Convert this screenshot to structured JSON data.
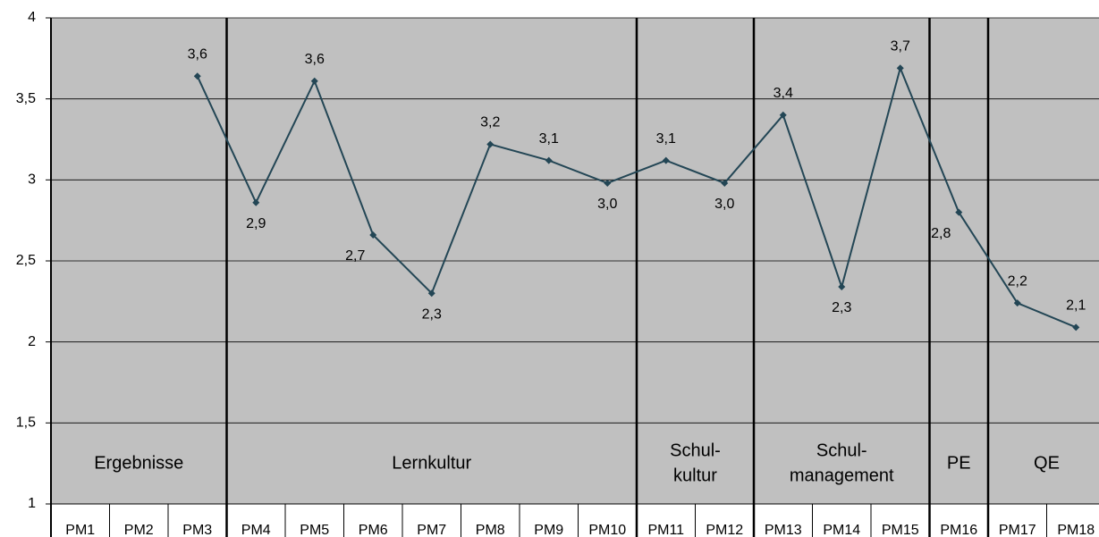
{
  "chart_data": {
    "type": "line",
    "categories": [
      "PM1",
      "PM2",
      "PM3",
      "PM4",
      "PM5",
      "PM6",
      "PM7",
      "PM8",
      "PM9",
      "PM10",
      "PM11",
      "PM12",
      "PM13",
      "PM14",
      "PM15",
      "PM16",
      "PM17",
      "PM18"
    ],
    "series": [
      {
        "color": "#234655",
        "values": [
          null,
          null,
          3.64,
          2.86,
          3.61,
          2.66,
          2.3,
          3.22,
          3.12,
          2.98,
          3.12,
          2.98,
          3.4,
          2.34,
          3.69,
          2.8,
          2.24,
          2.09
        ],
        "value_labels": [
          null,
          null,
          "3,6",
          "2,9",
          "3,6",
          "2,7",
          "2,3",
          "3,2",
          "3,1",
          "3,0",
          "3,1",
          "3,0",
          "3,4",
          "2,3",
          "3,7",
          "2,8",
          "2,2",
          "2,1"
        ]
      }
    ],
    "ylim": [
      1,
      4
    ],
    "yticks": [
      1,
      {
        "value": 1.5,
        "label": "1,5"
      },
      2,
      {
        "value": 2.5,
        "label": "2,5"
      },
      3,
      {
        "value": 3.5,
        "label": "3,5"
      },
      4
    ],
    "grid": true,
    "groups": [
      {
        "label": [
          "Ergebnisse"
        ]
      },
      {
        "label": [
          "Lernkultur"
        ]
      },
      {
        "label": [
          "Schul-",
          "kultur"
        ]
      },
      {
        "label": [
          "Schul-",
          "management"
        ]
      },
      {
        "label": [
          "PE"
        ]
      },
      {
        "label": [
          "QE"
        ]
      }
    ]
  }
}
